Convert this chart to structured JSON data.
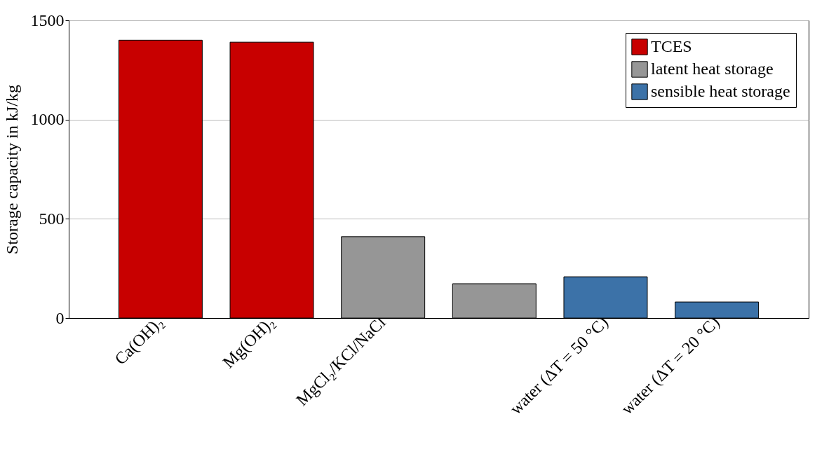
{
  "chart_data": {
    "type": "bar",
    "ylabel": "Storage capacity in kJ/kg",
    "categories": [
      "Ca(OH)₂",
      "Mg(OH)₂",
      "MgCl₂/KCl/NaCl",
      null,
      "water (ΔT = 50 °C)",
      "water (ΔT = 20 °C)"
    ],
    "series": [
      {
        "name": "TCES",
        "color": "#c80000",
        "values": [
          1400,
          1390,
          null,
          null,
          null,
          null
        ]
      },
      {
        "name": "latent heat storage",
        "color": "#969696",
        "values": [
          null,
          null,
          410,
          173,
          null,
          null
        ]
      },
      {
        "name": "sensible heat storage",
        "color": "#3c72a8",
        "values": [
          null,
          null,
          null,
          null,
          208,
          81
        ]
      }
    ],
    "ylim": [
      0,
      1500
    ],
    "yticks": [
      0,
      500,
      1000,
      1500
    ],
    "grid": "y",
    "legend": "top right"
  }
}
